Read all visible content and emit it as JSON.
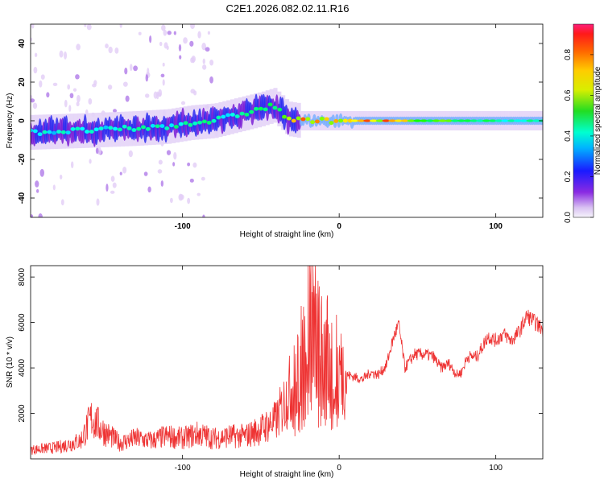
{
  "page": {
    "title": "C2E1.2026.082.02.11.R16"
  },
  "chart_data": [
    {
      "type": "heatmap",
      "title": "C2E1.2026.082.02.11.R16",
      "xlabel": "Height of straight line (km)",
      "ylabel": "Frequency (Hz)",
      "xlim": [
        -197,
        130
      ],
      "ylim": [
        -50,
        50
      ],
      "xticks": [
        -100,
        0,
        100
      ],
      "xtick_labels": [
        "-100",
        "0",
        "100"
      ],
      "yticks": [
        -40,
        -20,
        0,
        20,
        40
      ],
      "ytick_labels": [
        "-40",
        "-20",
        "0",
        "20",
        "40"
      ],
      "ridge": {
        "x": [
          -197,
          -160,
          -130,
          -110,
          -95,
          -80,
          -70,
          -60,
          -50,
          -42,
          -38,
          -33,
          -25,
          -15,
          0,
          20,
          60,
          100,
          130
        ],
        "frequency": [
          -6,
          -5,
          -4,
          -3,
          -1,
          0,
          2,
          4,
          6,
          8,
          5,
          1,
          0,
          0,
          0,
          0,
          0,
          0,
          0
        ],
        "amplitude": [
          0.35,
          0.38,
          0.4,
          0.42,
          0.45,
          0.42,
          0.4,
          0.42,
          0.45,
          0.5,
          0.5,
          0.7,
          0.8,
          0.85,
          0.85,
          0.9,
          0.6,
          0.45,
          0.4
        ]
      },
      "colorbar": {
        "label": "Normalized spectral amplitude",
        "range": [
          0.0,
          0.95
        ],
        "ticks": [
          0.0,
          0.2,
          0.4,
          0.6,
          0.8
        ],
        "tick_labels": [
          "0.0",
          "0.2",
          "0.4",
          "0.6",
          "0.8"
        ]
      }
    },
    {
      "type": "line",
      "xlabel": "Height of straight line (km)",
      "ylabel": "SNR (10 * v/v)",
      "xlim": [
        -197,
        130
      ],
      "ylim": [
        0,
        8500
      ],
      "xticks": [
        -100,
        0,
        100
      ],
      "xtick_labels": [
        "-100",
        "0",
        "100"
      ],
      "yticks": [
        2000,
        4000,
        6000,
        8000
      ],
      "ytick_labels": [
        "2000",
        "4000",
        "6000",
        "8000"
      ],
      "series": [
        {
          "name": "SNR",
          "color": "#ee3333",
          "x": [
            -197,
            -180,
            -165,
            -158,
            -150,
            -140,
            -130,
            -120,
            -110,
            -100,
            -90,
            -80,
            -70,
            -60,
            -50,
            -40,
            -33,
            -28,
            -24,
            -20,
            -17,
            -15,
            -12,
            -8,
            -4,
            0,
            5,
            10,
            15,
            20,
            25,
            30,
            35,
            38,
            42,
            48,
            55,
            60,
            65,
            70,
            75,
            78,
            82,
            88,
            95,
            100,
            105,
            110,
            115,
            120,
            125,
            130
          ],
          "y": [
            400,
            500,
            800,
            1800,
            1200,
            700,
            900,
            800,
            1000,
            900,
            1100,
            900,
            1000,
            1000,
            1300,
            1700,
            2800,
            3500,
            4500,
            6000,
            8300,
            5500,
            5000,
            4800,
            4300,
            4000,
            3700,
            3600,
            3500,
            3800,
            3700,
            4100,
            5400,
            5900,
            4000,
            4600,
            4600,
            4500,
            4000,
            4200,
            3700,
            3800,
            4500,
            4500,
            5400,
            5200,
            5500,
            5200,
            5600,
            6300,
            6000,
            5700
          ]
        }
      ]
    }
  ]
}
